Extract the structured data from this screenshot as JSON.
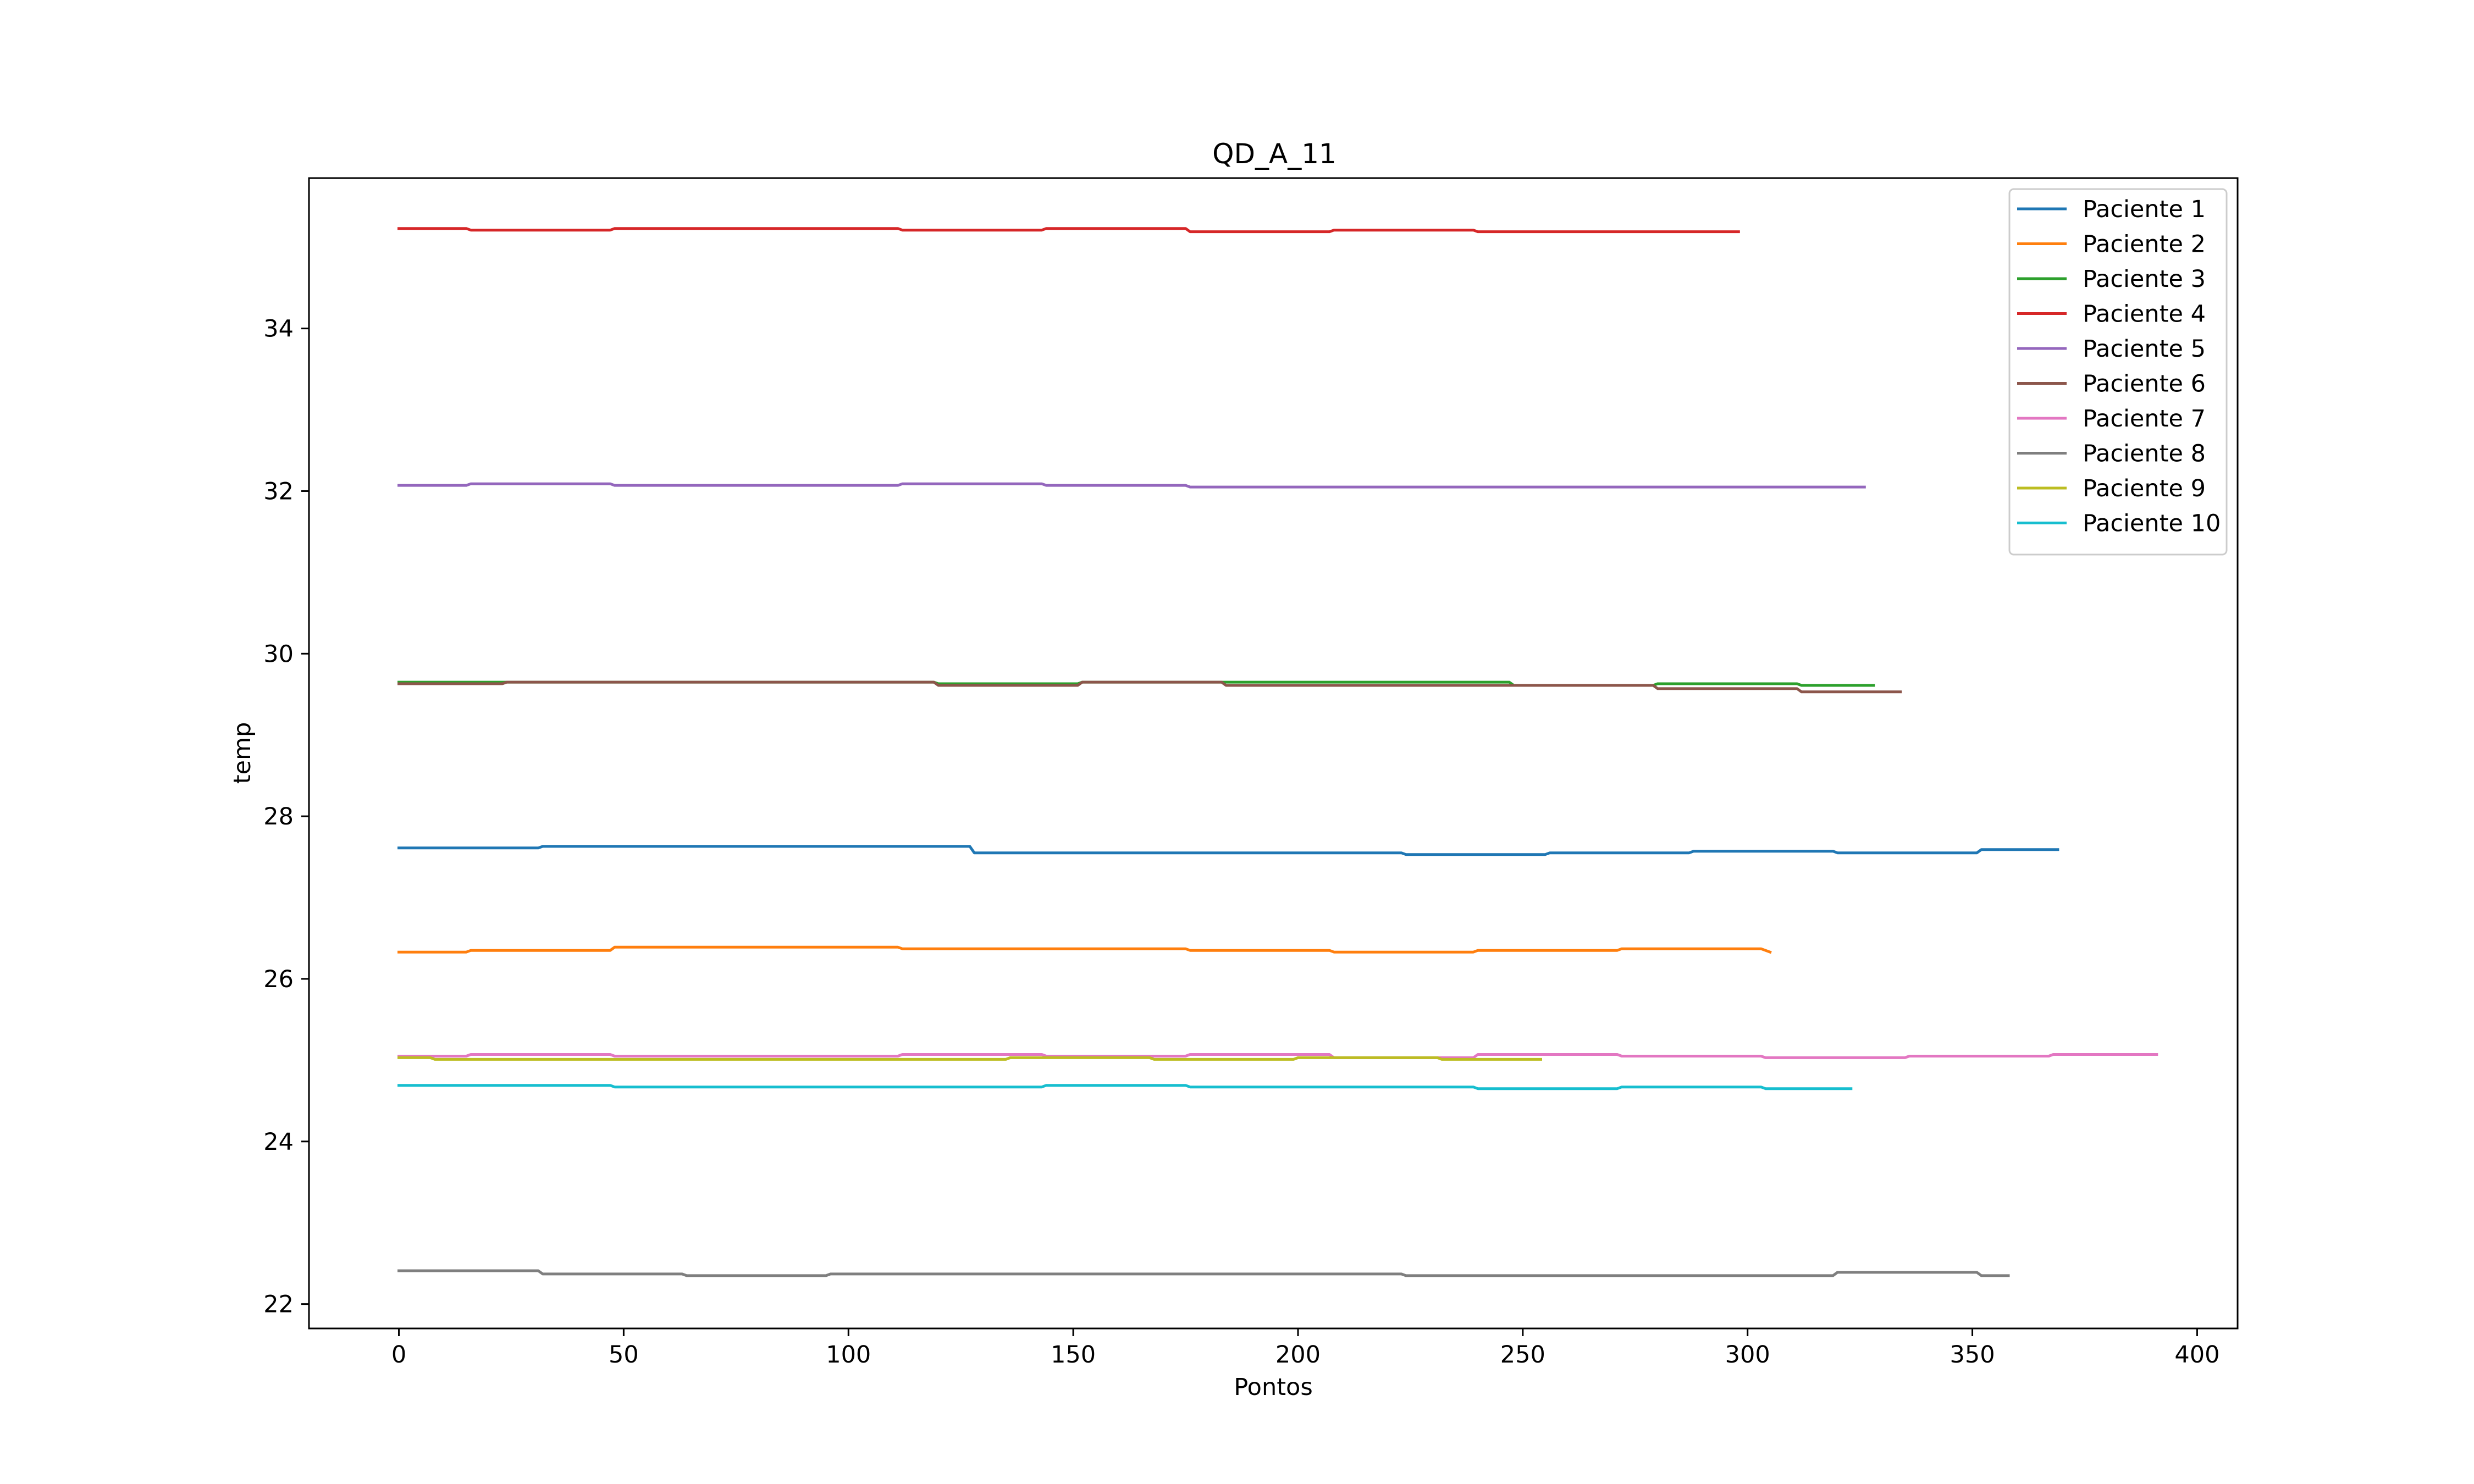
{
  "chart_data": {
    "type": "line",
    "title": "QD_A_11",
    "xlabel": "Pontos",
    "ylabel": "temp",
    "xlim": [
      -20,
      409
    ],
    "ylim": [
      21.7,
      35.85
    ],
    "xticks": [
      0,
      50,
      100,
      150,
      200,
      250,
      300,
      350,
      400
    ],
    "yticks": [
      22,
      24,
      26,
      28,
      30,
      32,
      34
    ],
    "grid": false,
    "legend_position": "top-right",
    "series": [
      {
        "name": "Paciente 1",
        "color": "#1f77b4",
        "x": [
          0,
          31,
          32,
          127,
          128,
          223,
          224,
          255,
          256,
          287,
          288,
          319,
          320,
          351,
          352,
          369
        ],
        "y": [
          27.61,
          27.61,
          27.63,
          27.63,
          27.55,
          27.55,
          27.53,
          27.53,
          27.55,
          27.55,
          27.57,
          27.57,
          27.55,
          27.55,
          27.59,
          27.59
        ]
      },
      {
        "name": "Paciente 2",
        "color": "#ff7f0e",
        "x": [
          0,
          15,
          16,
          47,
          48,
          111,
          112,
          175,
          176,
          207,
          208,
          239,
          240,
          271,
          272,
          303,
          305
        ],
        "y": [
          26.33,
          26.33,
          26.35,
          26.35,
          26.39,
          26.39,
          26.37,
          26.37,
          26.35,
          26.35,
          26.33,
          26.33,
          26.35,
          26.35,
          26.37,
          26.37,
          26.33
        ]
      },
      {
        "name": "Paciente 3",
        "color": "#2ca02c",
        "x": [
          0,
          119,
          120,
          151,
          152,
          247,
          248,
          279,
          280,
          311,
          312,
          328
        ],
        "y": [
          29.65,
          29.65,
          29.63,
          29.63,
          29.65,
          29.65,
          29.61,
          29.61,
          29.63,
          29.63,
          29.61,
          29.61
        ]
      },
      {
        "name": "Paciente 4",
        "color": "#d62728",
        "x": [
          0,
          15,
          16,
          47,
          48,
          111,
          112,
          143,
          144,
          175,
          176,
          207,
          208,
          239,
          240,
          298
        ],
        "y": [
          35.23,
          35.23,
          35.21,
          35.21,
          35.23,
          35.23,
          35.21,
          35.21,
          35.23,
          35.23,
          35.19,
          35.19,
          35.21,
          35.21,
          35.19,
          35.19
        ]
      },
      {
        "name": "Paciente 5",
        "color": "#9467bd",
        "x": [
          0,
          15,
          16,
          47,
          48,
          111,
          112,
          143,
          144,
          175,
          176,
          326
        ],
        "y": [
          32.07,
          32.07,
          32.09,
          32.09,
          32.07,
          32.07,
          32.09,
          32.09,
          32.07,
          32.07,
          32.05,
          32.05
        ]
      },
      {
        "name": "Paciente 6",
        "color": "#8c564b",
        "x": [
          0,
          23,
          24,
          119,
          120,
          151,
          152,
          183,
          184,
          279,
          280,
          311,
          312,
          334
        ],
        "y": [
          29.63,
          29.63,
          29.65,
          29.65,
          29.61,
          29.61,
          29.65,
          29.65,
          29.61,
          29.61,
          29.57,
          29.57,
          29.53,
          29.53
        ]
      },
      {
        "name": "Paciente 7",
        "color": "#e377c2",
        "x": [
          0,
          15,
          16,
          47,
          48,
          111,
          112,
          143,
          144,
          175,
          176,
          207,
          208,
          239,
          240,
          271,
          272,
          303,
          304,
          335,
          336,
          367,
          368,
          391
        ],
        "y": [
          25.05,
          25.05,
          25.07,
          25.07,
          25.05,
          25.05,
          25.07,
          25.07,
          25.05,
          25.05,
          25.07,
          25.07,
          25.03,
          25.03,
          25.07,
          25.07,
          25.05,
          25.05,
          25.03,
          25.03,
          25.05,
          25.05,
          25.07,
          25.07
        ]
      },
      {
        "name": "Paciente 8",
        "color": "#7f7f7f",
        "x": [
          0,
          31,
          32,
          63,
          64,
          95,
          96,
          223,
          224,
          319,
          320,
          351,
          352,
          358
        ],
        "y": [
          22.41,
          22.41,
          22.37,
          22.37,
          22.35,
          22.35,
          22.37,
          22.37,
          22.35,
          22.35,
          22.39,
          22.39,
          22.35,
          22.35
        ]
      },
      {
        "name": "Paciente 9",
        "color": "#bcbd22",
        "x": [
          0,
          7,
          8,
          135,
          136,
          167,
          168,
          199,
          200,
          231,
          232,
          254
        ],
        "y": [
          25.03,
          25.03,
          25.01,
          25.01,
          25.03,
          25.03,
          25.01,
          25.01,
          25.03,
          25.03,
          25.01,
          25.01
        ]
      },
      {
        "name": "Paciente 10",
        "color": "#17becf",
        "x": [
          0,
          47,
          48,
          143,
          144,
          175,
          176,
          239,
          240,
          271,
          272,
          303,
          304,
          323
        ],
        "y": [
          24.69,
          24.69,
          24.67,
          24.67,
          24.69,
          24.69,
          24.67,
          24.67,
          24.65,
          24.65,
          24.67,
          24.67,
          24.65,
          24.65
        ]
      }
    ]
  }
}
